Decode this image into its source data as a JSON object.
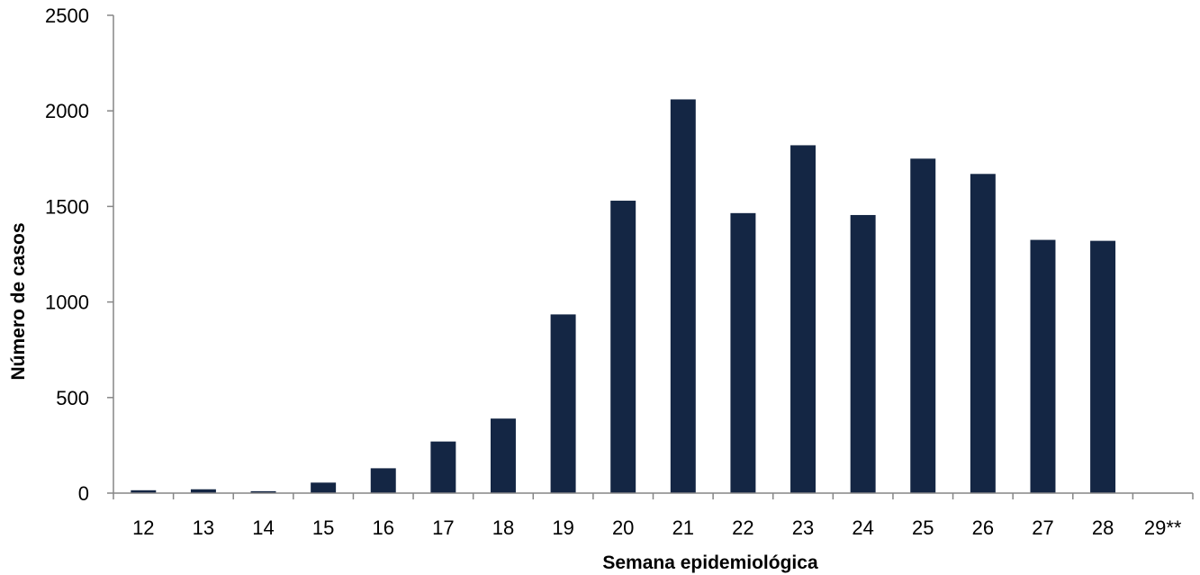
{
  "chart_data": {
    "type": "bar",
    "title": "",
    "xlabel": "Semana epidemiológica",
    "ylabel": "Número de casos",
    "categories": [
      "12",
      "13",
      "14",
      "15",
      "16",
      "17",
      "18",
      "19",
      "20",
      "21",
      "22",
      "23",
      "24",
      "25",
      "26",
      "27",
      "28",
      "29**"
    ],
    "values": [
      15,
      20,
      10,
      55,
      130,
      270,
      390,
      935,
      1530,
      2060,
      1465,
      1820,
      1455,
      1750,
      1670,
      1325,
      1320,
      0
    ],
    "ylim": [
      0,
      2500
    ],
    "yticks": [
      "0",
      "500",
      "1000",
      "1500",
      "2000",
      "2500"
    ],
    "grid": false,
    "legend": "none",
    "bar_color": "#142644"
  }
}
